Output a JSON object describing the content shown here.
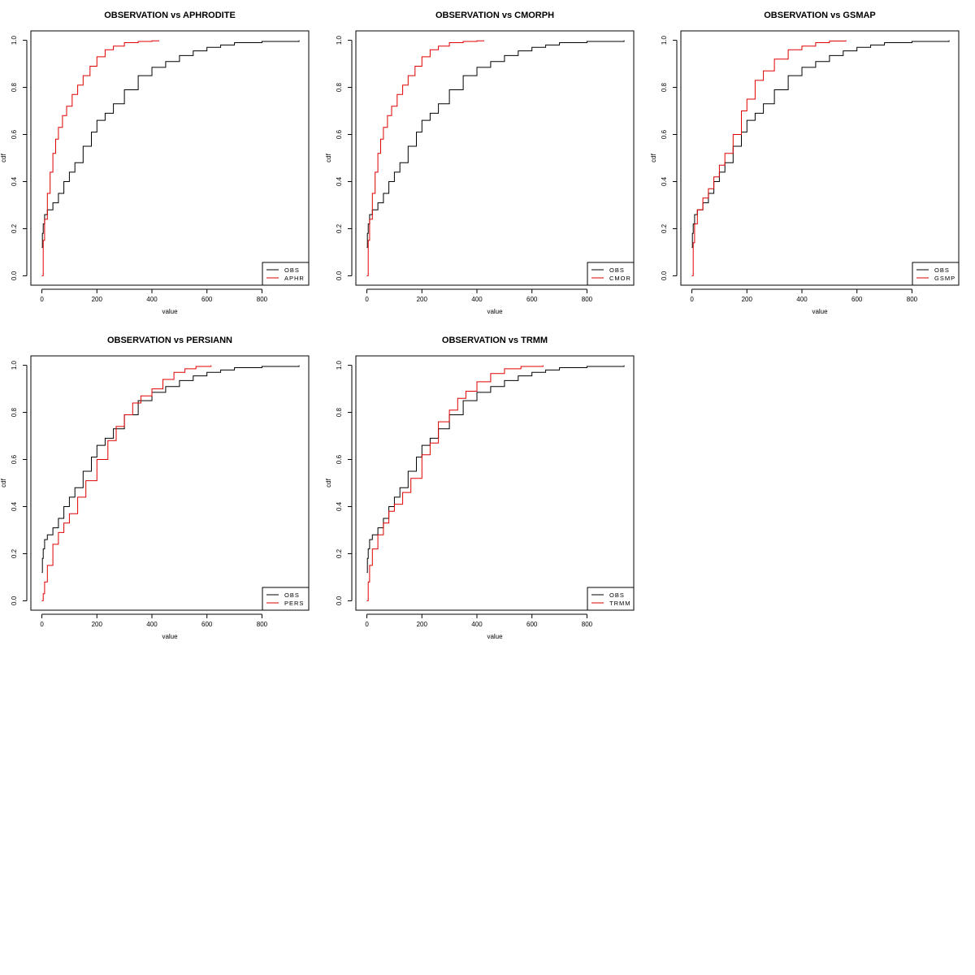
{
  "chart_data": [
    {
      "type": "line",
      "title": "OBSERVATION vs APHRODITE",
      "xlabel": "value",
      "ylabel": "cdf",
      "xlim": [
        -40,
        970
      ],
      "ylim": [
        -0.04,
        1.04
      ],
      "xticks": [
        "0",
        "200",
        "400",
        "600",
        "800"
      ],
      "yticks": [
        "0.0",
        "0.2",
        "0.4",
        "0.6",
        "0.8",
        "1.0"
      ],
      "legend_position": "bottom-right",
      "grid": false,
      "series": [
        {
          "name": "OBS",
          "color": "#000000",
          "x": [
            0,
            2,
            5,
            10,
            20,
            40,
            60,
            80,
            100,
            120,
            150,
            180,
            200,
            230,
            260,
            300,
            350,
            400,
            450,
            500,
            550,
            600,
            650,
            700,
            800,
            935
          ],
          "y": [
            0.12,
            0.18,
            0.22,
            0.26,
            0.28,
            0.31,
            0.35,
            0.4,
            0.44,
            0.48,
            0.55,
            0.61,
            0.66,
            0.69,
            0.73,
            0.79,
            0.85,
            0.885,
            0.91,
            0.935,
            0.955,
            0.97,
            0.98,
            0.99,
            0.995,
            1.0
          ]
        },
        {
          "name": "APHR",
          "color": "#e00000",
          "x": [
            0,
            5,
            10,
            20,
            30,
            40,
            50,
            60,
            75,
            90,
            110,
            130,
            150,
            175,
            200,
            230,
            260,
            300,
            350,
            400,
            425
          ],
          "y": [
            0.0,
            0.15,
            0.24,
            0.35,
            0.44,
            0.52,
            0.58,
            0.63,
            0.68,
            0.72,
            0.77,
            0.81,
            0.85,
            0.89,
            0.93,
            0.96,
            0.975,
            0.99,
            0.995,
            0.998,
            1.0
          ]
        }
      ]
    },
    {
      "type": "line",
      "title": "OBSERVATION vs CMORPH",
      "xlabel": "value",
      "ylabel": "cdf",
      "xlim": [
        -40,
        970
      ],
      "ylim": [
        -0.04,
        1.04
      ],
      "xticks": [
        "0",
        "200",
        "400",
        "600",
        "800"
      ],
      "yticks": [
        "0.0",
        "0.2",
        "0.4",
        "0.6",
        "0.8",
        "1.0"
      ],
      "legend_position": "bottom-right",
      "grid": false,
      "series": [
        {
          "name": "OBS",
          "color": "#000000",
          "x": [
            0,
            2,
            5,
            10,
            20,
            40,
            60,
            80,
            100,
            120,
            150,
            180,
            200,
            230,
            260,
            300,
            350,
            400,
            450,
            500,
            550,
            600,
            650,
            700,
            800,
            935
          ],
          "y": [
            0.12,
            0.18,
            0.22,
            0.26,
            0.28,
            0.31,
            0.35,
            0.4,
            0.44,
            0.48,
            0.55,
            0.61,
            0.66,
            0.69,
            0.73,
            0.79,
            0.85,
            0.885,
            0.91,
            0.935,
            0.955,
            0.97,
            0.98,
            0.99,
            0.995,
            1.0
          ]
        },
        {
          "name": "CMOR",
          "color": "#e00000",
          "x": [
            0,
            5,
            10,
            20,
            30,
            40,
            50,
            60,
            75,
            90,
            110,
            130,
            150,
            175,
            200,
            230,
            260,
            300,
            350,
            400,
            425
          ],
          "y": [
            0.0,
            0.15,
            0.24,
            0.35,
            0.44,
            0.52,
            0.58,
            0.63,
            0.68,
            0.72,
            0.77,
            0.81,
            0.85,
            0.89,
            0.93,
            0.96,
            0.975,
            0.99,
            0.995,
            0.998,
            1.0
          ]
        }
      ]
    },
    {
      "type": "line",
      "title": "OBSERVATION vs GSMAP",
      "xlabel": "value",
      "ylabel": "cdf",
      "xlim": [
        -40,
        970
      ],
      "ylim": [
        -0.04,
        1.04
      ],
      "xticks": [
        "0",
        "200",
        "400",
        "600",
        "800"
      ],
      "yticks": [
        "0.0",
        "0.2",
        "0.4",
        "0.6",
        "0.8",
        "1.0"
      ],
      "legend_position": "bottom-right",
      "grid": false,
      "series": [
        {
          "name": "OBS",
          "color": "#000000",
          "x": [
            0,
            2,
            5,
            10,
            20,
            40,
            60,
            80,
            100,
            120,
            150,
            180,
            200,
            230,
            260,
            300,
            350,
            400,
            450,
            500,
            550,
            600,
            650,
            700,
            800,
            935
          ],
          "y": [
            0.12,
            0.18,
            0.22,
            0.26,
            0.28,
            0.31,
            0.35,
            0.4,
            0.44,
            0.48,
            0.55,
            0.61,
            0.66,
            0.69,
            0.73,
            0.79,
            0.85,
            0.885,
            0.91,
            0.935,
            0.955,
            0.97,
            0.98,
            0.99,
            0.995,
            1.0
          ]
        },
        {
          "name": "GSMP",
          "color": "#e00000",
          "x": [
            0,
            5,
            10,
            20,
            40,
            60,
            80,
            100,
            120,
            150,
            180,
            200,
            230,
            260,
            300,
            350,
            400,
            450,
            500,
            560
          ],
          "y": [
            0.0,
            0.14,
            0.22,
            0.28,
            0.33,
            0.37,
            0.42,
            0.47,
            0.52,
            0.6,
            0.7,
            0.75,
            0.83,
            0.87,
            0.92,
            0.96,
            0.975,
            0.99,
            0.997,
            1.0
          ]
        }
      ]
    },
    {
      "type": "line",
      "title": "OBSERVATION vs PERSIANN",
      "xlabel": "value",
      "ylabel": "cdf",
      "xlim": [
        -40,
        970
      ],
      "ylim": [
        -0.04,
        1.04
      ],
      "xticks": [
        "0",
        "200",
        "400",
        "600",
        "800"
      ],
      "yticks": [
        "0.0",
        "0.2",
        "0.4",
        "0.6",
        "0.8",
        "1.0"
      ],
      "legend_position": "bottom-right",
      "grid": false,
      "series": [
        {
          "name": "OBS",
          "color": "#000000",
          "x": [
            0,
            2,
            5,
            10,
            20,
            40,
            60,
            80,
            100,
            120,
            150,
            180,
            200,
            230,
            260,
            300,
            350,
            400,
            450,
            500,
            550,
            600,
            650,
            700,
            800,
            935
          ],
          "y": [
            0.12,
            0.18,
            0.22,
            0.26,
            0.28,
            0.31,
            0.35,
            0.4,
            0.44,
            0.48,
            0.55,
            0.61,
            0.66,
            0.69,
            0.73,
            0.79,
            0.85,
            0.885,
            0.91,
            0.935,
            0.955,
            0.97,
            0.98,
            0.99,
            0.995,
            1.0
          ]
        },
        {
          "name": "PERS",
          "color": "#e00000",
          "x": [
            0,
            5,
            10,
            20,
            40,
            60,
            80,
            100,
            130,
            160,
            200,
            240,
            270,
            300,
            330,
            360,
            400,
            440,
            480,
            520,
            560,
            615
          ],
          "y": [
            0.0,
            0.03,
            0.08,
            0.15,
            0.24,
            0.29,
            0.33,
            0.37,
            0.44,
            0.51,
            0.6,
            0.68,
            0.74,
            0.79,
            0.84,
            0.87,
            0.9,
            0.94,
            0.97,
            0.985,
            0.995,
            1.0
          ]
        }
      ]
    },
    {
      "type": "line",
      "title": "OBSERVATION vs TRMM",
      "xlabel": "value",
      "ylabel": "cdf",
      "xlim": [
        -40,
        970
      ],
      "ylim": [
        -0.04,
        1.04
      ],
      "xticks": [
        "0",
        "200",
        "400",
        "600",
        "800"
      ],
      "yticks": [
        "0.0",
        "0.2",
        "0.4",
        "0.6",
        "0.8",
        "1.0"
      ],
      "legend_position": "bottom-right",
      "grid": false,
      "series": [
        {
          "name": "OBS",
          "color": "#000000",
          "x": [
            0,
            2,
            5,
            10,
            20,
            40,
            60,
            80,
            100,
            120,
            150,
            180,
            200,
            230,
            260,
            300,
            350,
            400,
            450,
            500,
            550,
            600,
            650,
            700,
            800,
            935
          ],
          "y": [
            0.12,
            0.18,
            0.22,
            0.26,
            0.28,
            0.31,
            0.35,
            0.4,
            0.44,
            0.48,
            0.55,
            0.61,
            0.66,
            0.69,
            0.73,
            0.79,
            0.85,
            0.885,
            0.91,
            0.935,
            0.955,
            0.97,
            0.98,
            0.99,
            0.995,
            1.0
          ]
        },
        {
          "name": "TRMM",
          "color": "#e00000",
          "x": [
            0,
            5,
            10,
            20,
            40,
            60,
            80,
            100,
            130,
            160,
            200,
            230,
            260,
            300,
            330,
            360,
            400,
            450,
            500,
            560,
            640
          ],
          "y": [
            0.0,
            0.08,
            0.15,
            0.22,
            0.28,
            0.33,
            0.38,
            0.41,
            0.46,
            0.52,
            0.62,
            0.67,
            0.76,
            0.81,
            0.86,
            0.89,
            0.93,
            0.965,
            0.985,
            0.995,
            1.0
          ]
        }
      ]
    }
  ]
}
